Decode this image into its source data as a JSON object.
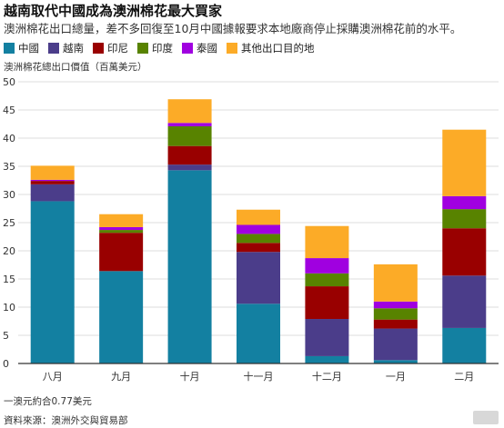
{
  "title": "越南取代中國成為澳洲棉花最大買家",
  "subtitle": "澳洲棉花出口總量，差不多回復至10月中國據報要求本地廠商停止採購澳洲棉花前的水平。",
  "footnote": "一澳元約合0.77美元",
  "source": "資料來源：澳洲外交與貿易部",
  "chart_data": {
    "type": "bar",
    "stacked": true,
    "ylabel": "澳洲棉花總出口價值（百萬美元）",
    "ylim": [
      0,
      50
    ],
    "yticks": [
      0,
      5,
      10,
      15,
      20,
      25,
      30,
      35,
      40,
      45,
      50
    ],
    "grid": true,
    "legend_position": "top-left",
    "categories": [
      "八月",
      "九月",
      "十月",
      "十一月",
      "十二月",
      "一月",
      "二月"
    ],
    "series": [
      {
        "name": "中國",
        "color": "#1380a1",
        "values": [
          28.8,
          16.4,
          34.3,
          10.6,
          1.3,
          0.6,
          6.3
        ]
      },
      {
        "name": "越南",
        "color": "#4b3d8a",
        "values": [
          3.0,
          0.0,
          1.0,
          9.2,
          6.6,
          5.6,
          9.3
        ]
      },
      {
        "name": "印尼",
        "color": "#990000",
        "values": [
          0.6,
          6.8,
          3.3,
          1.6,
          5.8,
          1.6,
          8.4
        ]
      },
      {
        "name": "印度",
        "color": "#588300",
        "values": [
          0.0,
          0.5,
          3.5,
          1.6,
          2.3,
          2.0,
          3.4
        ]
      },
      {
        "name": "泰國",
        "color": "#a000e0",
        "values": [
          0.2,
          0.5,
          0.6,
          1.6,
          2.7,
          1.2,
          2.3
        ]
      },
      {
        "name": "其他出口目的地",
        "color": "#fcab27",
        "values": [
          2.5,
          2.3,
          4.2,
          2.7,
          5.7,
          6.6,
          11.8
        ]
      }
    ]
  }
}
